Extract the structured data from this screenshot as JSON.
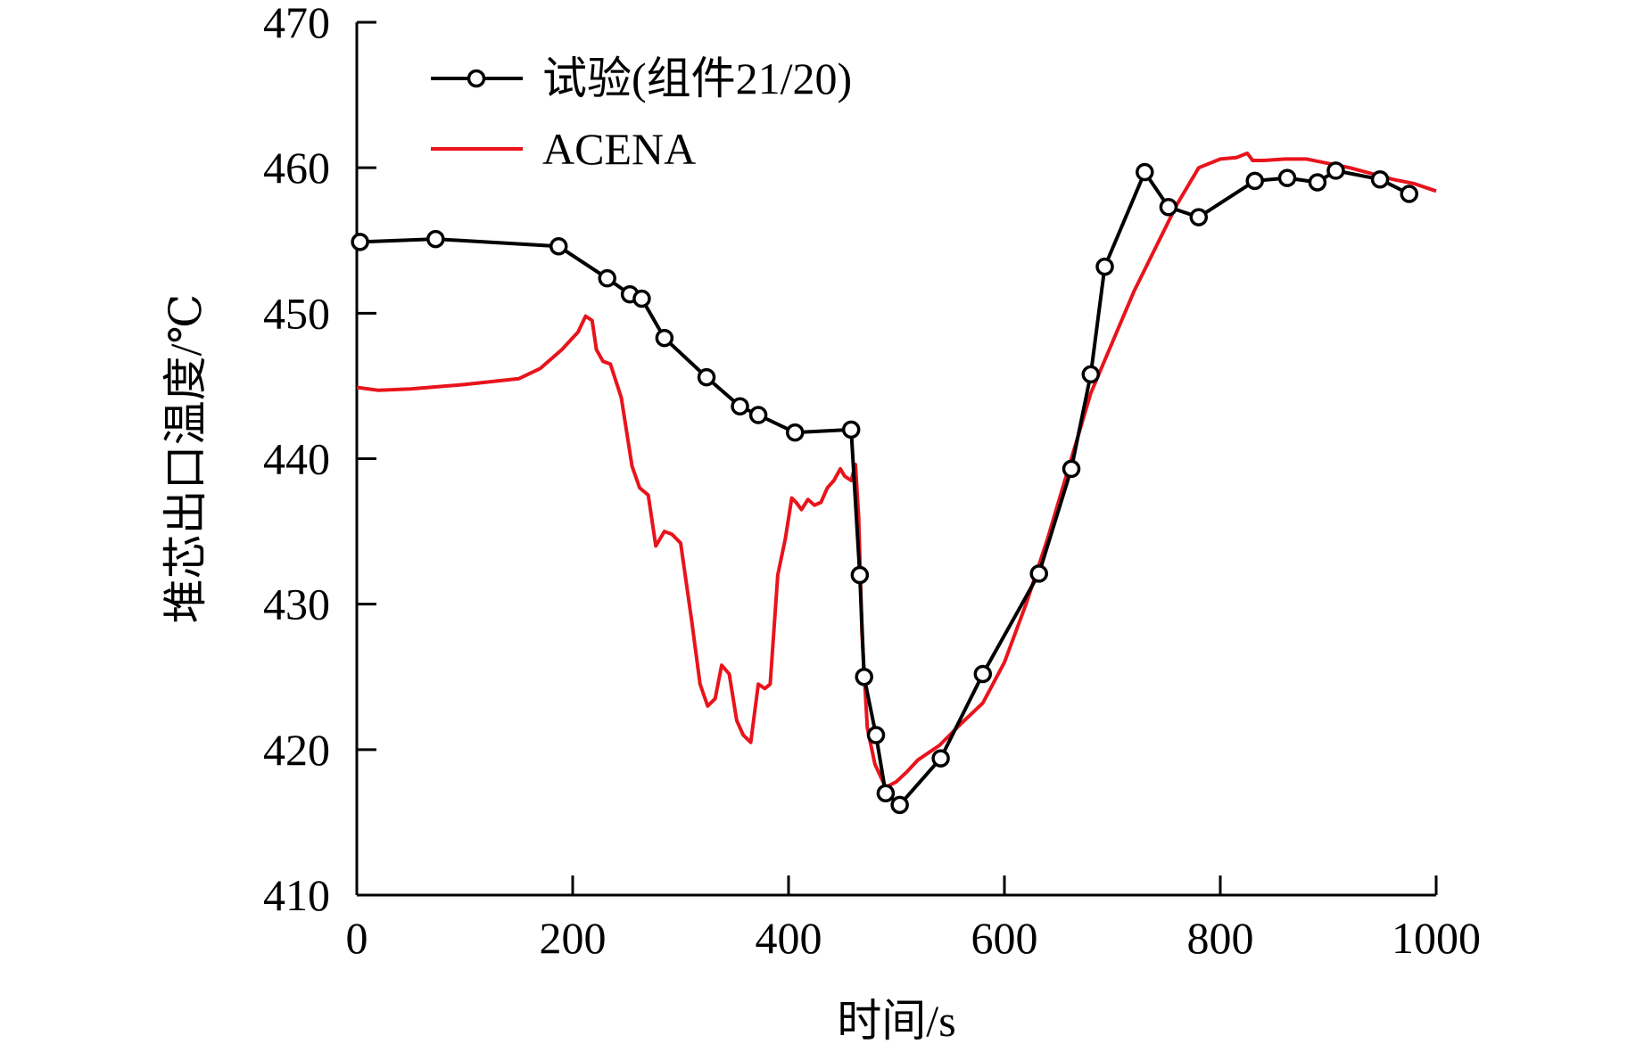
{
  "chart_data": {
    "type": "line",
    "title": "",
    "xlabel": "时间/s",
    "ylabel": "堆芯出口温度/℃",
    "xlim": [
      0,
      1000
    ],
    "ylim": [
      410,
      470
    ],
    "xticks": [
      0,
      200,
      400,
      600,
      800,
      1000
    ],
    "yticks": [
      410,
      420,
      430,
      440,
      450,
      460,
      470
    ],
    "grid": false,
    "legend_position": "top-left",
    "series": [
      {
        "name": "试验(组件21/20)",
        "color": "#000000",
        "marker": "circle-open",
        "x": [
          3,
          73,
          187,
          232,
          253,
          264,
          285,
          324,
          355,
          372,
          406,
          458,
          466,
          470,
          481,
          490,
          503,
          541,
          580,
          632,
          662,
          680,
          693,
          730,
          752,
          780,
          832,
          862,
          890,
          907,
          948,
          975
        ],
        "y": [
          454.9,
          455.1,
          454.6,
          452.4,
          451.3,
          451.0,
          448.3,
          445.6,
          443.6,
          443.0,
          441.8,
          442.0,
          432.0,
          425.0,
          421.0,
          417.0,
          416.2,
          419.4,
          425.2,
          432.1,
          439.3,
          445.8,
          453.2,
          459.7,
          457.3,
          456.6,
          459.1,
          459.3,
          459.0,
          459.8,
          459.2,
          458.2
        ]
      },
      {
        "name": "ACENA",
        "color": "#e8141c",
        "marker": "none",
        "x": [
          0,
          20,
          50,
          100,
          150,
          170,
          190,
          205,
          212,
          218,
          222,
          228,
          235,
          245,
          255,
          262,
          270,
          277,
          285,
          292,
          300,
          310,
          318,
          325,
          332,
          338,
          345,
          352,
          358,
          365,
          372,
          378,
          383,
          390,
          397,
          403,
          407,
          412,
          418,
          424,
          430,
          436,
          442,
          448,
          452,
          458,
          462,
          465,
          468,
          473,
          480,
          490,
          500,
          510,
          520,
          540,
          560,
          580,
          600,
          620,
          640,
          660,
          680,
          700,
          720,
          740,
          760,
          780,
          800,
          815,
          825,
          830,
          840,
          860,
          880,
          900,
          920,
          940,
          960,
          980,
          1000
        ],
        "y": [
          444.9,
          444.7,
          444.8,
          445.1,
          445.5,
          446.2,
          447.5,
          448.7,
          449.8,
          449.5,
          447.5,
          446.7,
          446.5,
          444.2,
          439.5,
          438.0,
          437.5,
          434.0,
          435.0,
          434.8,
          434.2,
          429.0,
          424.5,
          423.0,
          423.5,
          425.8,
          425.2,
          422.0,
          421.0,
          420.5,
          424.5,
          424.2,
          424.5,
          432.0,
          434.5,
          437.3,
          437.0,
          436.5,
          437.2,
          436.8,
          437.0,
          438.0,
          438.5,
          439.3,
          438.8,
          438.5,
          439.6,
          436.0,
          428.0,
          421.5,
          419.0,
          417.4,
          417.8,
          418.5,
          419.3,
          420.3,
          421.8,
          423.2,
          426.0,
          430.0,
          434.5,
          439.5,
          444.5,
          448.0,
          451.5,
          454.5,
          457.5,
          460.0,
          460.6,
          460.7,
          461.0,
          460.5,
          460.5,
          460.6,
          460.6,
          460.3,
          460.0,
          459.6,
          459.2,
          458.9,
          458.4
        ]
      }
    ]
  }
}
